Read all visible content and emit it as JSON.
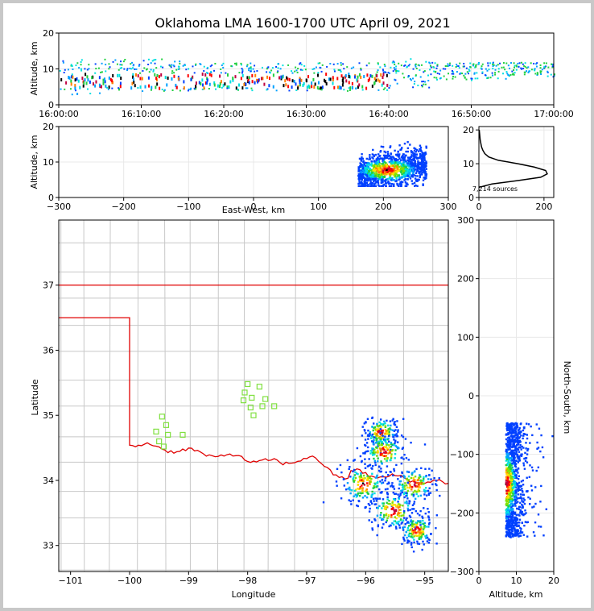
{
  "chart_data": {
    "type": "scatter",
    "title": "Oklahoma LMA 1600-1700 UTC April 09, 2021",
    "panels": {
      "time_height": {
        "ylabel": "Altitude, km",
        "ylim": [
          0,
          20
        ],
        "yticks": [
          "0",
          "10",
          "20"
        ],
        "xticks": [
          "16:00:00",
          "16:10:00",
          "16:20:00",
          "16:30:00",
          "16:40:00",
          "16:50:00",
          "17:00:00"
        ],
        "xlim_minutes": [
          0,
          60
        ],
        "activity": [
          {
            "minute": 0,
            "alt_lo": 3,
            "alt_hi": 13
          },
          {
            "minute": 5,
            "alt_lo": 4,
            "alt_hi": 13
          },
          {
            "minute": 10,
            "alt_lo": 4,
            "alt_hi": 13
          },
          {
            "minute": 15,
            "alt_lo": 4,
            "alt_hi": 12
          },
          {
            "minute": 20,
            "alt_lo": 4,
            "alt_hi": 12
          },
          {
            "minute": 25,
            "alt_lo": 4,
            "alt_hi": 12
          },
          {
            "minute": 30,
            "alt_lo": 4,
            "alt_hi": 12
          },
          {
            "minute": 35,
            "alt_lo": 4,
            "alt_hi": 12
          },
          {
            "minute": 40,
            "alt_lo": 5,
            "alt_hi": 13
          },
          {
            "minute": 45,
            "alt_lo": 7,
            "alt_hi": 12
          },
          {
            "minute": 50,
            "alt_lo": 7,
            "alt_hi": 12
          },
          {
            "minute": 55,
            "alt_lo": 8,
            "alt_hi": 12
          }
        ]
      },
      "east_west": {
        "xlabel": "East-West, km",
        "ylabel": "Altitude, km",
        "xlim": [
          -300,
          300
        ],
        "ylim": [
          0,
          20
        ],
        "xticks": [
          "−300",
          "−200",
          "−100",
          "0",
          "100",
          "200",
          "300"
        ],
        "yticks": [
          "0",
          "10",
          "20"
        ],
        "x_range": [
          160,
          265
        ],
        "core_x": 205,
        "core_alt": 8
      },
      "histogram": {
        "xlim": [
          0,
          230
        ],
        "ylim": [
          0,
          21
        ],
        "xticks": [
          "0",
          "200"
        ],
        "yticks": [
          "0",
          "10",
          "20"
        ],
        "annotation": "7,214 sources",
        "profile": [
          {
            "alt": 3.0,
            "count": 0
          },
          {
            "alt": 4.0,
            "count": 40
          },
          {
            "alt": 5.0,
            "count": 120
          },
          {
            "alt": 6.0,
            "count": 190
          },
          {
            "alt": 7.0,
            "count": 210
          },
          {
            "alt": 8.0,
            "count": 205
          },
          {
            "alt": 9.0,
            "count": 170
          },
          {
            "alt": 10.0,
            "count": 120
          },
          {
            "alt": 11.0,
            "count": 60
          },
          {
            "alt": 12.0,
            "count": 30
          },
          {
            "alt": 13.0,
            "count": 18
          },
          {
            "alt": 14.0,
            "count": 12
          },
          {
            "alt": 15.0,
            "count": 8
          },
          {
            "alt": 16.0,
            "count": 6
          },
          {
            "alt": 17.0,
            "count": 4
          },
          {
            "alt": 18.0,
            "count": 3
          },
          {
            "alt": 19.0,
            "count": 2
          },
          {
            "alt": 20.0,
            "count": 1
          }
        ]
      },
      "plan_view": {
        "xlabel": "Longitude",
        "ylabel": "Latitude",
        "xlim": [
          -101.2,
          -94.6
        ],
        "ylim": [
          32.6,
          38.0
        ],
        "xticks": [
          "−101",
          "−100",
          "−99",
          "−98",
          "−97",
          "−96",
          "−95"
        ],
        "yticks": [
          "33",
          "34",
          "35",
          "36",
          "37"
        ],
        "stations": [
          [
            -99.55,
            34.75
          ],
          [
            -99.45,
            34.98
          ],
          [
            -99.38,
            34.85
          ],
          [
            -99.35,
            34.7
          ],
          [
            -99.5,
            34.6
          ],
          [
            -99.42,
            34.52
          ],
          [
            -99.1,
            34.7
          ],
          [
            -98.0,
            35.48
          ],
          [
            -98.05,
            35.35
          ],
          [
            -98.07,
            35.23
          ],
          [
            -97.93,
            35.27
          ],
          [
            -97.8,
            35.44
          ],
          [
            -97.7,
            35.25
          ],
          [
            -97.75,
            35.14
          ],
          [
            -97.95,
            35.12
          ],
          [
            -97.9,
            35.0
          ],
          [
            -97.55,
            35.14
          ]
        ],
        "storm_cells": [
          {
            "lon": -95.75,
            "lat": 34.75,
            "spread": 0.15
          },
          {
            "lon": -95.7,
            "lat": 34.45,
            "spread": 0.18
          },
          {
            "lon": -96.05,
            "lat": 33.95,
            "spread": 0.2
          },
          {
            "lon": -95.2,
            "lat": 33.95,
            "spread": 0.18
          },
          {
            "lon": -95.55,
            "lat": 33.55,
            "spread": 0.2
          },
          {
            "lon": -95.15,
            "lat": 33.25,
            "spread": 0.15
          }
        ],
        "state_border_color": "#e00000",
        "county_color": "#c8c8c8"
      },
      "north_south": {
        "xlabel": "Altitude, km",
        "ylabel": "North-South, km",
        "xlim": [
          0,
          20
        ],
        "ylim": [
          -300,
          300
        ],
        "xticks": [
          "0",
          "10",
          "20"
        ],
        "yticks": [
          "−300",
          "−200",
          "−100",
          "0",
          "100",
          "200",
          "300"
        ],
        "y_range": [
          -240,
          -45
        ],
        "core_y": -150,
        "core_alt": 7
      }
    },
    "colors": [
      "#0040ff",
      "#00a0ff",
      "#00e0e0",
      "#20d040",
      "#80e000",
      "#ffe000",
      "#ff8000",
      "#ff0000",
      "#c00040",
      "#000000"
    ]
  }
}
